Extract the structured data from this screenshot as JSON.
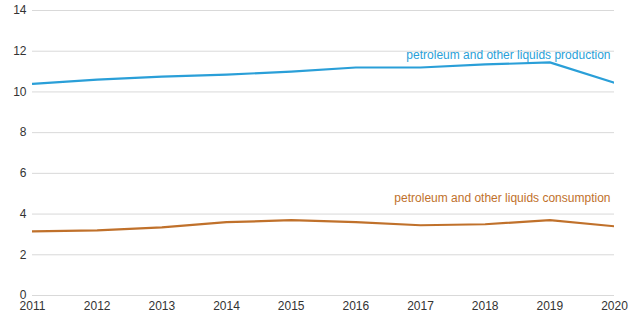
{
  "chart_data": {
    "type": "line",
    "x": [
      2011,
      2012,
      2013,
      2014,
      2015,
      2016,
      2017,
      2018,
      2019,
      2020
    ],
    "series": [
      {
        "name": "petroleum and other liquids production",
        "color": "#2a9fd8",
        "values": [
          10.4,
          10.6,
          10.75,
          10.85,
          11.0,
          11.2,
          11.2,
          11.35,
          11.45,
          10.45
        ]
      },
      {
        "name": "petroleum and other liquids consumption",
        "color": "#c0712b",
        "values": [
          3.15,
          3.2,
          3.35,
          3.6,
          3.7,
          3.6,
          3.45,
          3.5,
          3.7,
          3.4
        ]
      }
    ],
    "xlim": [
      2011,
      2020
    ],
    "xticks": [
      2011,
      2012,
      2013,
      2014,
      2015,
      2016,
      2017,
      2018,
      2019,
      2020
    ],
    "ylim": [
      0,
      14
    ],
    "yticks": [
      0,
      2,
      4,
      6,
      8,
      10,
      12,
      14
    ],
    "grid": true
  }
}
